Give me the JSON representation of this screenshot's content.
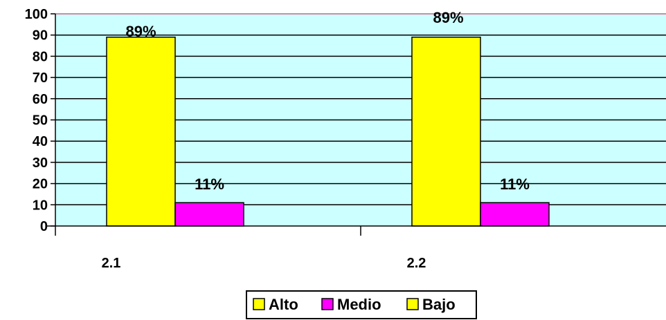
{
  "chart_data": {
    "type": "bar",
    "categories": [
      "2.1",
      "2.2"
    ],
    "series": [
      {
        "name": "Alto",
        "values": [
          89,
          89
        ],
        "labels": [
          "89%",
          "89%"
        ],
        "color": "#ffff00"
      },
      {
        "name": "Medio",
        "values": [
          11,
          11
        ],
        "labels": [
          "11%",
          "11%"
        ],
        "color": "#ff00ff"
      },
      {
        "name": "Bajo",
        "values": [
          0,
          0
        ],
        "labels": [
          "",
          ""
        ],
        "color": "#ffff00"
      }
    ],
    "ylim": [
      0,
      100
    ],
    "yticks": [
      0,
      10,
      20,
      30,
      40,
      50,
      60,
      70,
      80,
      90,
      100
    ],
    "ytick_labels": [
      "0",
      "10",
      "20",
      "30",
      "40",
      "50",
      "60",
      "70",
      "80",
      "90",
      "100"
    ],
    "grid": true,
    "legend_position": "bottom",
    "plot_background": "#ccffff"
  }
}
